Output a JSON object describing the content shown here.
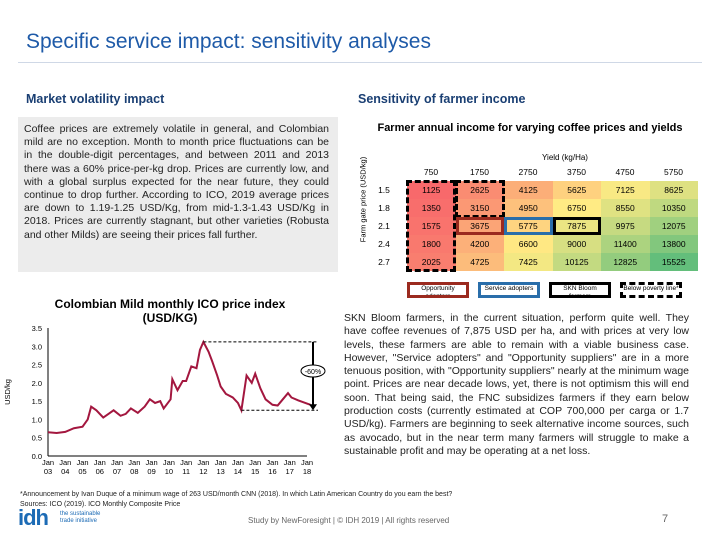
{
  "title": "Specific service impact: sensitivity analyses",
  "left": {
    "heading": "Market volatility impact",
    "text": "Coffee prices are extremely volatile in general, and Colombian mild are no exception. Month to month price fluctuations can be in the double-digit percentages, and between 2011 and 2013 there was a 60% price-per-kg drop. Prices are currently low, and with a global surplus expected for the near future, they could continue to drop further. According to ICO, 2019 average prices are down to 1.19-1.25 USD/Kg, from mid-1.3-1.43 USD/Kg in 2018. Prices are currently stagnant, but other varieties (Robusta and other Milds) are seeing their prices fall further."
  },
  "right": {
    "heading": "Sensitivity of farmer income",
    "text": "SKN Bloom farmers, in the current situation, perform quite well. They have coffee revenues of 7,875 USD per ha, and with prices at very low levels, these farmers are able to remain with a viable business case. However, \"Service adopters\" and \"Opportunity suppliers\" are in a more tenuous position, with \"Opportunity suppliers\" nearly at the minimum wage point. Prices are near decade lows, yet, there is not optimism this will end soon. That being said, the FNC subsidizes farmers if they earn below production costs (currently estimated at COP 700,000 per carga or 1.7 USD/kg). Farmers are beginning to seek alternative income sources, such as avocado, but in the near term many farmers will struggle to make a sustainable profit and may be operating at a net loss."
  },
  "table": {
    "title": "Farmer annual income for varying coffee prices and yields",
    "x_label": "Yield (kg/Ha)",
    "y_label": "Farm gate price (USD/kg)",
    "columns": [
      "750",
      "1750",
      "2750",
      "3750",
      "4750",
      "5750"
    ],
    "rows": [
      {
        "price": "1.5",
        "values": [
          "1125",
          "2625",
          "4125",
          "5625",
          "7125",
          "8625"
        ]
      },
      {
        "price": "1.8",
        "values": [
          "1350",
          "3150",
          "4950",
          "6750",
          "8550",
          "10350"
        ]
      },
      {
        "price": "2.1",
        "values": [
          "1575",
          "3675",
          "5775",
          "7875",
          "9975",
          "12075"
        ]
      },
      {
        "price": "2.4",
        "values": [
          "1800",
          "4200",
          "6600",
          "9000",
          "11400",
          "13800"
        ]
      },
      {
        "price": "2.7",
        "values": [
          "2025",
          "4725",
          "7425",
          "10125",
          "12825",
          "15525"
        ]
      }
    ],
    "color_scale": {
      "min": "#f8696b",
      "mid": "#ffeb84",
      "max": "#63be7b"
    },
    "legend": [
      {
        "label": "Opportunity adopters",
        "color": "#9b2a1f",
        "style": "solid"
      },
      {
        "label": "Service adopters",
        "color": "#2a6eaa",
        "style": "solid"
      },
      {
        "label": "SKN Bloom farmers",
        "color": "#000000",
        "style": "solid"
      },
      {
        "label": "Below poverty line*",
        "color": "#000000",
        "style": "dashed"
      }
    ]
  },
  "chart_data": {
    "type": "line",
    "title": "Colombian Mild monthly ICO price index (USD/KG)",
    "ylabel": "USD/kg",
    "ylim": [
      0,
      3.5
    ],
    "yticks": [
      "0.0",
      "0.5",
      "1.0",
      "1.5",
      "2.0",
      "2.5",
      "3.0",
      "3.5"
    ],
    "xticks": [
      [
        "Jan",
        "03"
      ],
      [
        "Jan",
        "04"
      ],
      [
        "Jan",
        "05"
      ],
      [
        "Jan",
        "06"
      ],
      [
        "Jan",
        "07"
      ],
      [
        "Jan",
        "08"
      ],
      [
        "Jan",
        "09"
      ],
      [
        "Jan",
        "10"
      ],
      [
        "Jan",
        "11"
      ],
      [
        "Jan",
        "12"
      ],
      [
        "Jan",
        "13"
      ],
      [
        "Jan",
        "14"
      ],
      [
        "Jan",
        "15"
      ],
      [
        "Jan",
        "16"
      ],
      [
        "Jan",
        "17"
      ],
      [
        "Jan",
        "18"
      ]
    ],
    "line_color": "#a3173f",
    "annotation": "-60%",
    "x": [
      2003.0,
      2003.5,
      2004.0,
      2004.5,
      2005.0,
      2005.3,
      2005.5,
      2005.8,
      2006.2,
      2006.5,
      2006.8,
      2007.2,
      2007.5,
      2007.8,
      2008.2,
      2008.6,
      2008.9,
      2009.2,
      2009.5,
      2009.7,
      2010.1,
      2010.2,
      2010.5,
      2010.8,
      2011.0,
      2011.3,
      2011.6,
      2011.8,
      2012.0,
      2012.3,
      2012.5,
      2012.8,
      2013.0,
      2013.3,
      2013.7,
      2014.0,
      2014.2,
      2014.5,
      2014.8,
      2015.0,
      2015.3,
      2015.6,
      2016.0,
      2016.3,
      2016.6,
      2016.9,
      2017.1,
      2017.5,
      2017.9,
      2018.2
    ],
    "y": [
      0.65,
      0.63,
      0.66,
      0.76,
      0.8,
      1.0,
      1.35,
      1.25,
      1.05,
      1.15,
      1.25,
      1.1,
      1.15,
      1.3,
      1.18,
      1.35,
      1.55,
      1.45,
      1.5,
      1.3,
      1.55,
      2.1,
      1.8,
      2.05,
      2.05,
      2.45,
      2.4,
      2.9,
      3.12,
      2.85,
      2.6,
      2.2,
      1.9,
      1.7,
      1.6,
      1.45,
      1.25,
      2.2,
      2.0,
      2.25,
      1.85,
      1.55,
      1.4,
      1.38,
      1.55,
      1.72,
      1.6,
      1.52,
      1.45,
      1.4
    ]
  },
  "footer": {
    "note": "*Announcement by Ivan Duque of a minimum wage of 263 USD/month CNN (2018). In which Latin American Country do you earn the best?",
    "sources": "Sources: ICO (2019). ICO Monthly Composite Price",
    "center": "Study by NewForesight | © IDH 2019 | All rights reserved",
    "page": "7",
    "logo_text": "the sustainable trade initiative"
  }
}
